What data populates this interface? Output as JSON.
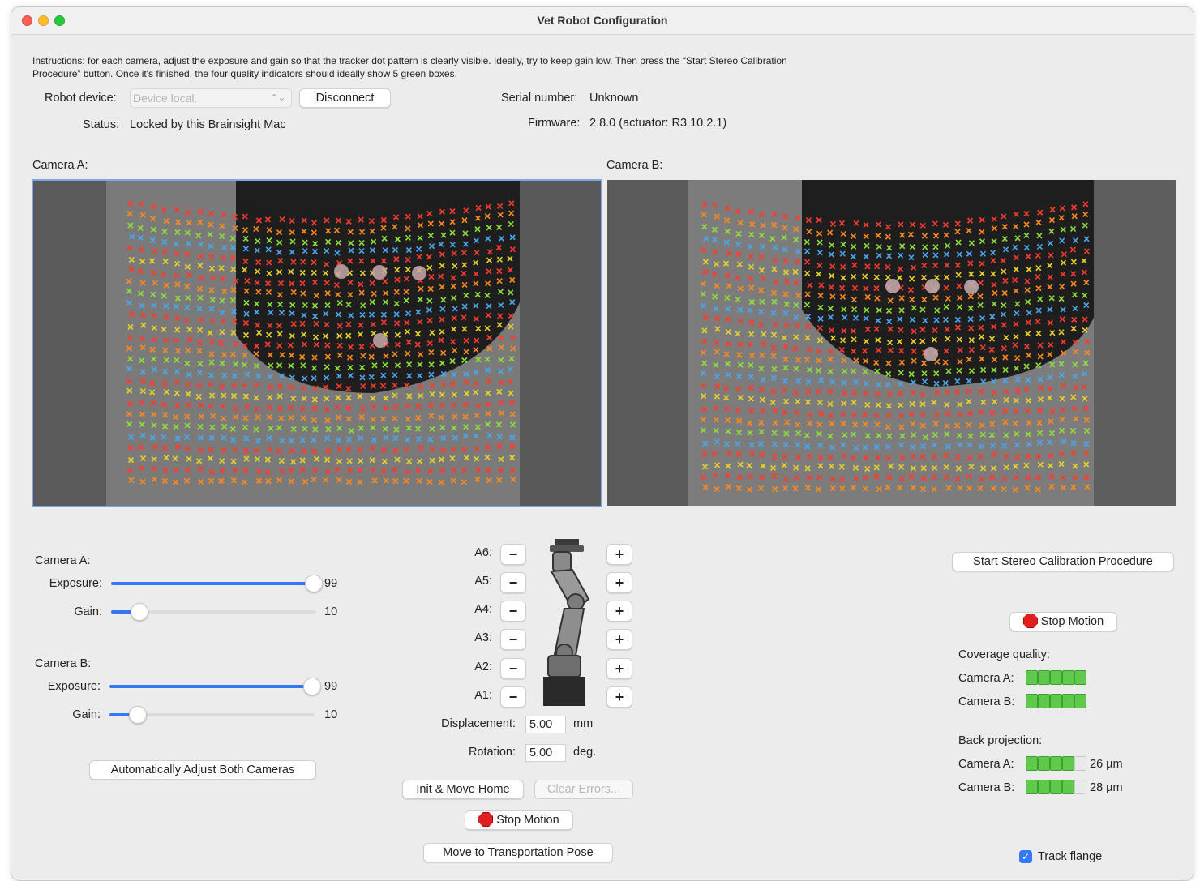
{
  "window": {
    "title": "Vet Robot Configuration"
  },
  "instructions": "Instructions: for each camera, adjust the exposure and gain so that the tracker dot pattern is clearly visible. Ideally, try to keep gain low. Then press the “Start Stereo Calibration Procedure” button. Once it's finished, the four quality indicators should ideally show 5 green boxes.",
  "device": {
    "robot_device_label": "Robot device:",
    "robot_device_value": "Device.local.",
    "disconnect_label": "Disconnect",
    "status_label": "Status:",
    "status_value": "Locked by this Brainsight Mac",
    "serial_label": "Serial number:",
    "serial_value": "Unknown",
    "firmware_label": "Firmware:",
    "firmware_value": "2.8.0 (actuator: R3 10.2.1)"
  },
  "cameras": {
    "a_title": "Camera A:",
    "b_title": "Camera B:"
  },
  "camera_controls": {
    "a": {
      "title": "Camera A:",
      "exposure_label": "Exposure:",
      "exposure_value": "99",
      "exposure_fraction": 0.99,
      "gain_label": "Gain:",
      "gain_value": "10",
      "gain_fraction": 0.14
    },
    "b": {
      "title": "Camera B:",
      "exposure_label": "Exposure:",
      "exposure_value": "99",
      "exposure_fraction": 0.99,
      "gain_label": "Gain:",
      "gain_value": "10",
      "gain_fraction": 0.14
    },
    "auto_adjust_label": "Automatically Adjust Both Cameras"
  },
  "joints": {
    "labels": [
      "A6:",
      "A5:",
      "A4:",
      "A3:",
      "A2:",
      "A1:"
    ],
    "minus_glyph": "−",
    "plus_glyph": "+",
    "displacement_label": "Displacement:",
    "displacement_value": "5.00",
    "displacement_unit": "mm",
    "rotation_label": "Rotation:",
    "rotation_value": "5.00",
    "rotation_unit": "deg.",
    "init_home_label": "Init & Move Home",
    "clear_errors_label": "Clear Errors...",
    "stop_motion_label": "Stop Motion",
    "transport_pose_label": "Move to Transportation Pose"
  },
  "calibration": {
    "start_label": "Start Stereo Calibration Procedure",
    "stop_motion_label": "Stop Motion",
    "coverage_title": "Coverage quality:",
    "coverage": [
      {
        "label": "Camera A:",
        "filled": 5,
        "total": 5
      },
      {
        "label": "Camera B:",
        "filled": 5,
        "total": 5
      }
    ],
    "backproj_title": "Back projection:",
    "backproj": [
      {
        "label": "Camera A:",
        "filled": 4,
        "total": 5,
        "value": "26 µm"
      },
      {
        "label": "Camera B:",
        "filled": 4,
        "total": 5,
        "value": "28 µm"
      }
    ],
    "track_flange_label": "Track flange",
    "track_flange_checked": true
  },
  "colors": {
    "accent": "#3478f6",
    "quality_green": "#5fc94c",
    "stop_red": "#e02020"
  }
}
